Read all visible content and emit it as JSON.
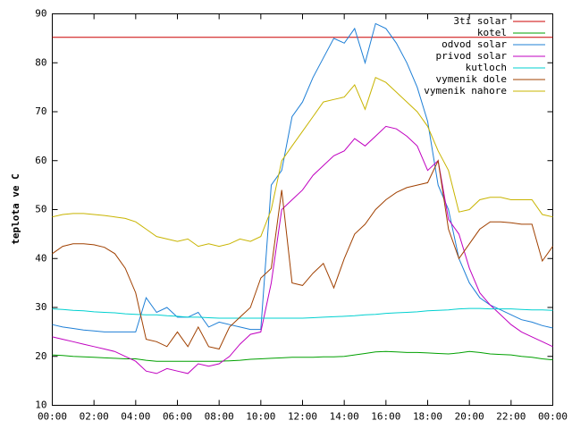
{
  "chart_data": {
    "type": "line",
    "y_label": "teplota ve C",
    "x": [
      0,
      0.5,
      1,
      1.5,
      2,
      2.5,
      3,
      3.5,
      4,
      4.5,
      5,
      5.5,
      6,
      6.5,
      7,
      7.5,
      8,
      8.5,
      9,
      9.5,
      10,
      10.5,
      11,
      11.5,
      12,
      12.5,
      13,
      13.5,
      14,
      14.5,
      15,
      15.5,
      16,
      16.5,
      17,
      17.5,
      18,
      18.5,
      19,
      19.5,
      20,
      20.5,
      21,
      21.5,
      22,
      22.5,
      23,
      23.5,
      24
    ],
    "series": [
      {
        "name": "3ti solar",
        "color": "#cc0000",
        "values": [
          85.2,
          85.2,
          85.2,
          85.2,
          85.2,
          85.2,
          85.2,
          85.2,
          85.2,
          85.2,
          85.2,
          85.2,
          85.2,
          85.2,
          85.2,
          85.2,
          85.2,
          85.2,
          85.2,
          85.2,
          85.2,
          85.2,
          85.2,
          85.2,
          85.2,
          85.2,
          85.2,
          85.2,
          85.2,
          85.2,
          85.2,
          85.2,
          85.2,
          85.2,
          85.2,
          85.2,
          85.2,
          85.2,
          85.2,
          85.2,
          85.2,
          85.2,
          85.2,
          85.2,
          85.2,
          85.2,
          85.2,
          85.2,
          85.2
        ]
      },
      {
        "name": "kotel",
        "color": "#00a000",
        "values": [
          20.3,
          20.2,
          20,
          19.9,
          19.8,
          19.7,
          19.6,
          19.5,
          19.5,
          19.2,
          19,
          19,
          19,
          19,
          19,
          19,
          19,
          19.1,
          19.2,
          19.4,
          19.5,
          19.6,
          19.7,
          19.8,
          19.8,
          19.8,
          19.9,
          19.9,
          20,
          20.3,
          20.6,
          20.9,
          21,
          20.9,
          20.8,
          20.8,
          20.7,
          20.6,
          20.5,
          20.7,
          21,
          20.8,
          20.5,
          20.4,
          20.3,
          20,
          19.8,
          19.5,
          19.3
        ]
      },
      {
        "name": "odvod solar",
        "color": "#1e7fd6",
        "values": [
          26.5,
          26,
          25.7,
          25.4,
          25.2,
          25,
          25,
          25,
          25,
          32,
          29,
          30,
          28,
          28,
          29,
          26,
          27,
          26.5,
          26,
          25.5,
          25.5,
          55,
          58,
          69,
          72,
          77,
          81,
          85,
          84,
          87,
          80,
          88,
          87,
          84,
          80,
          75,
          68,
          55,
          50,
          40,
          35,
          32,
          30.5,
          29.5,
          28.5,
          27.5,
          27,
          26.3,
          25.8
        ]
      },
      {
        "name": "privod solar",
        "color": "#c000c0",
        "values": [
          24,
          23.5,
          23,
          22.5,
          22,
          21.5,
          21,
          20,
          19,
          17,
          16.5,
          17.5,
          17,
          16.5,
          18.5,
          18,
          18.5,
          20,
          22.5,
          24.5,
          25,
          35,
          50,
          52,
          54,
          57,
          59,
          61,
          62,
          64.5,
          63,
          65,
          67,
          66.5,
          65,
          63,
          58,
          60,
          48,
          45,
          38,
          33,
          30.5,
          28.5,
          26.5,
          25,
          24,
          23,
          22
        ]
      },
      {
        "name": "kutloch",
        "color": "#00d0d0",
        "values": [
          29.7,
          29.6,
          29.4,
          29.3,
          29.1,
          29,
          28.9,
          28.7,
          28.6,
          28.5,
          28.5,
          28.3,
          28.2,
          28,
          28,
          27.9,
          27.8,
          27.8,
          27.8,
          27.8,
          27.8,
          27.8,
          27.8,
          27.8,
          27.8,
          27.9,
          28,
          28.1,
          28.2,
          28.3,
          28.5,
          28.6,
          28.8,
          28.9,
          29,
          29.1,
          29.3,
          29.4,
          29.5,
          29.7,
          29.8,
          29.8,
          29.7,
          29.7,
          29.7,
          29.6,
          29.5,
          29.5,
          29.4
        ]
      },
      {
        "name": "vymenik dole",
        "color": "#a04000",
        "values": [
          41,
          42.5,
          43,
          43,
          42.8,
          42.3,
          41,
          38,
          33,
          23.5,
          23,
          22,
          25,
          22,
          26,
          22,
          21.5,
          26,
          28,
          30,
          36,
          38,
          54,
          35,
          34.5,
          37,
          39,
          34,
          40,
          45,
          47,
          50,
          52,
          53.5,
          54.5,
          55,
          55.5,
          60,
          46,
          40,
          43,
          46,
          47.5,
          47.5,
          47.3,
          47,
          47,
          39.5,
          42.5
        ]
      },
      {
        "name": "vymenik nahore",
        "color": "#c8b400",
        "values": [
          48.5,
          49,
          49.2,
          49.2,
          49,
          48.8,
          48.5,
          48.2,
          47.5,
          46,
          44.5,
          44,
          43.5,
          44,
          42.5,
          43,
          42.5,
          43,
          44,
          43.5,
          44.5,
          50,
          60,
          63,
          66,
          69,
          72,
          72.5,
          73,
          75.5,
          70.5,
          77,
          76,
          74,
          72,
          70,
          67,
          62,
          58,
          49.5,
          50,
          52,
          52.5,
          52.5,
          52,
          52,
          52,
          49,
          48.5
        ]
      }
    ],
    "xlim": [
      0,
      24
    ],
    "xticks": [
      {
        "value": 0,
        "label": "00:00"
      },
      {
        "value": 2,
        "label": "02:00"
      },
      {
        "value": 4,
        "label": "04:00"
      },
      {
        "value": 6,
        "label": "06:00"
      },
      {
        "value": 8,
        "label": "08:00"
      },
      {
        "value": 10,
        "label": "10:00"
      },
      {
        "value": 12,
        "label": "12:00"
      },
      {
        "value": 14,
        "label": "14:00"
      },
      {
        "value": 16,
        "label": "16:00"
      },
      {
        "value": 18,
        "label": "18:00"
      },
      {
        "value": 20,
        "label": "20:00"
      },
      {
        "value": 22,
        "label": "22:00"
      },
      {
        "value": 24,
        "label": "00:00"
      }
    ],
    "ylim": [
      10,
      90
    ],
    "yticks": [
      10,
      20,
      30,
      40,
      50,
      60,
      70,
      80,
      90
    ],
    "legend": "top-right"
  }
}
